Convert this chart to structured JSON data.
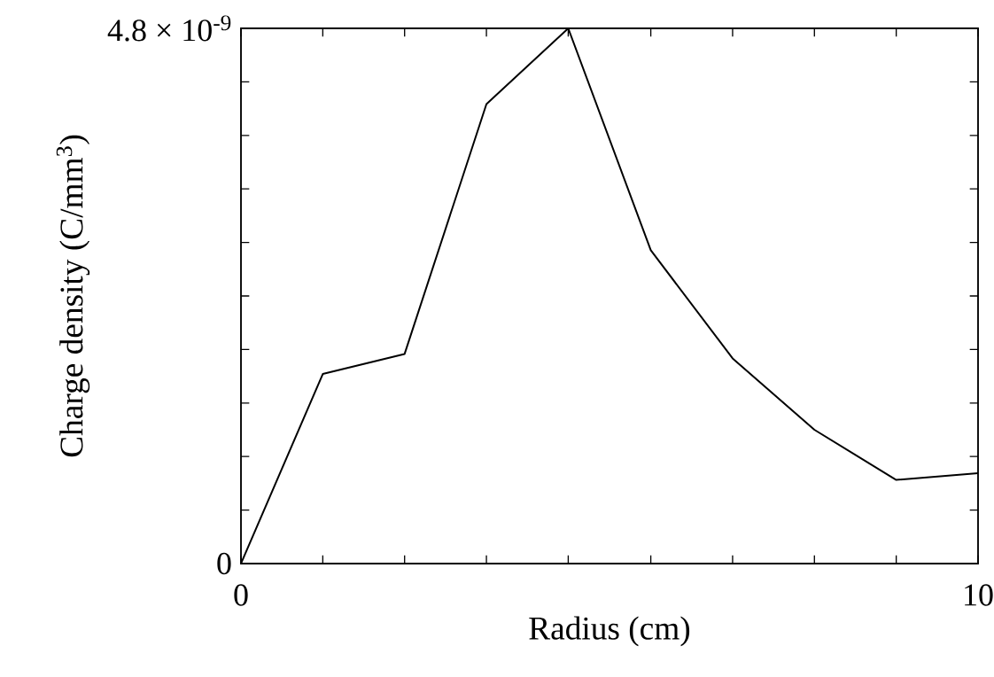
{
  "chart_data": {
    "type": "line",
    "xlabel": "Radius (cm)",
    "ylabel": "Charge density (C/mm$^{3}$)",
    "x": [
      0,
      1.11,
      2.22,
      3.33,
      4.44,
      5.56,
      6.67,
      7.78,
      8.89,
      10
    ],
    "values": [
      0,
      1.7e-09,
      1.88e-09,
      4.12e-09,
      4.8e-09,
      2.81e-09,
      1.84e-09,
      1.2e-09,
      7.5e-10,
      8.1e-10
    ],
    "color": "#000000",
    "line_style": "solid",
    "xlim": [
      0,
      10
    ],
    "ylim": [
      0,
      4.8e-09
    ],
    "xticks": [
      0,
      {
        "value": 1.11,
        "label": null
      },
      {
        "value": 2.22,
        "label": null
      },
      {
        "value": 3.33,
        "label": null
      },
      {
        "value": 4.44,
        "label": null
      },
      {
        "value": 5.56,
        "label": null
      },
      {
        "value": 6.67,
        "label": null
      },
      {
        "value": 7.78,
        "label": null
      },
      {
        "value": 8.89,
        "label": null
      },
      10
    ],
    "yticks": [
      0,
      {
        "value": 4.8e-10,
        "label": null
      },
      {
        "value": 9.6e-10,
        "label": null
      },
      {
        "value": 1.44e-09,
        "label": null
      },
      {
        "value": 1.92e-09,
        "label": null
      },
      {
        "value": 2.4e-09,
        "label": null
      },
      {
        "value": 2.88e-09,
        "label": null
      },
      {
        "value": 3.36e-09,
        "label": null
      },
      {
        "value": 3.84e-09,
        "label": null
      },
      {
        "value": 4.32e-09,
        "label": null
      },
      {
        "value": 4.8e-09,
        "label": "4.8 × 10$^{-9}$"
      }
    ]
  }
}
